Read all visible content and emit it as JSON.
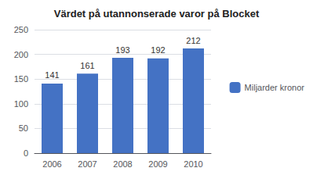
{
  "chart_data": {
    "type": "bar",
    "title": "Värdet på utannonserade varor på Blocket",
    "categories": [
      "2006",
      "2007",
      "2008",
      "2009",
      "2010"
    ],
    "series": [
      {
        "name": "Miljarder kronor",
        "color": "#4472C4",
        "values": [
          141,
          161,
          193,
          192,
          212
        ]
      }
    ],
    "ylim": [
      0,
      250
    ],
    "yticks": [
      0,
      50,
      100,
      150,
      200,
      250
    ],
    "grid": true,
    "legend": "right",
    "data_labels": true
  }
}
